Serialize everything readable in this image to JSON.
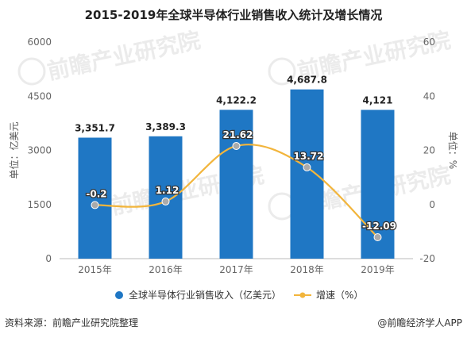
{
  "title": "2015-2019年全球半导体行业销售收入统计及增长情况",
  "source": "资料来源：前瞻产业研究院整理",
  "credit": "@前瞻经济学人APP",
  "watermark": "前瞻产业研究院",
  "colors": {
    "bar": "#1f77c4",
    "line": "#f2b53c",
    "marker": "#aaaaaa"
  },
  "chart_data": {
    "type": "bar",
    "categories": [
      "2015年",
      "2016年",
      "2017年",
      "2018年",
      "2019年"
    ],
    "series": [
      {
        "name": "全球半导体行业销售收入（亿美元）",
        "type": "bar",
        "axis": "left",
        "values": [
          3351.7,
          3389.3,
          4122.2,
          4687.8,
          4121
        ],
        "labels": [
          "3,351.7",
          "3,389.3",
          "4,122.2",
          "4,687.8",
          "4,121"
        ]
      },
      {
        "name": "增速（%）",
        "type": "line",
        "axis": "right",
        "smooth": true,
        "values": [
          -0.2,
          1.12,
          21.62,
          13.72,
          -12.09
        ],
        "labels": [
          "-0.2",
          "1.12",
          "21.62",
          "13.72",
          "-12.09"
        ]
      }
    ],
    "ylabel": "单位：亿美元",
    "y2label": "单位：%",
    "ylim": [
      0,
      6000
    ],
    "y2lim": [
      -20,
      60
    ],
    "yticks": [
      "0",
      "1500",
      "3000",
      "4500",
      "6000"
    ],
    "y2ticks": [
      "-20",
      "0",
      "20",
      "40",
      "60"
    ],
    "grid": false,
    "legend": "bottom"
  }
}
